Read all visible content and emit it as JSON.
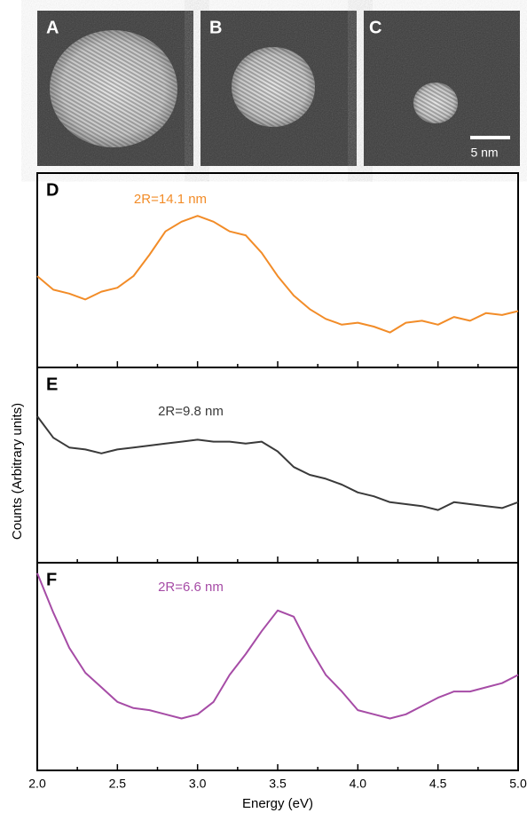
{
  "images": [
    {
      "label": "A"
    },
    {
      "label": "B"
    },
    {
      "label": "C",
      "scale_bar": "5 nm"
    }
  ],
  "chart_data": [
    {
      "type": "line",
      "panel": "D",
      "annotation": "2R=14.1 nm",
      "color": "#f28c28",
      "xlim": [
        2.0,
        5.0
      ],
      "ylim": [
        0,
        1
      ],
      "x": [
        2.0,
        2.1,
        2.2,
        2.3,
        2.4,
        2.5,
        2.6,
        2.7,
        2.8,
        2.9,
        3.0,
        3.1,
        3.2,
        3.3,
        3.4,
        3.5,
        3.6,
        3.7,
        3.8,
        3.9,
        4.0,
        4.1,
        4.2,
        4.3,
        4.4,
        4.5,
        4.6,
        4.7,
        4.8,
        4.9,
        5.0
      ],
      "values": [
        0.47,
        0.4,
        0.38,
        0.35,
        0.39,
        0.41,
        0.47,
        0.58,
        0.7,
        0.75,
        0.78,
        0.75,
        0.7,
        0.68,
        0.59,
        0.47,
        0.37,
        0.3,
        0.25,
        0.22,
        0.23,
        0.21,
        0.18,
        0.23,
        0.24,
        0.22,
        0.26,
        0.24,
        0.28,
        0.27,
        0.29
      ]
    },
    {
      "type": "line",
      "panel": "E",
      "annotation": "2R=9.8 nm",
      "color": "#3a3a3a",
      "ylabel": "Counts (Arbitrary units)",
      "xlim": [
        2.0,
        5.0
      ],
      "ylim": [
        0,
        1
      ],
      "x": [
        2.0,
        2.1,
        2.2,
        2.3,
        2.4,
        2.5,
        2.6,
        2.7,
        2.8,
        2.9,
        3.0,
        3.1,
        3.2,
        3.3,
        3.4,
        3.5,
        3.6,
        3.7,
        3.8,
        3.9,
        4.0,
        4.1,
        4.2,
        4.3,
        4.4,
        4.5,
        4.6,
        4.7,
        4.8,
        4.9,
        5.0
      ],
      "values": [
        0.75,
        0.64,
        0.59,
        0.58,
        0.56,
        0.58,
        0.59,
        0.6,
        0.61,
        0.62,
        0.63,
        0.62,
        0.62,
        0.61,
        0.62,
        0.57,
        0.49,
        0.45,
        0.43,
        0.4,
        0.36,
        0.34,
        0.31,
        0.3,
        0.29,
        0.27,
        0.31,
        0.3,
        0.29,
        0.28,
        0.31
      ]
    },
    {
      "type": "line",
      "panel": "F",
      "annotation": "2R=6.6 nm",
      "color": "#a64ca6",
      "xlabel": "Energy (eV)",
      "xlim": [
        2.0,
        5.0
      ],
      "ylim": [
        0,
        1
      ],
      "xticks": [
        {
          "value": 2,
          "label": "2.0"
        },
        2.5,
        {
          "value": 3,
          "label": "3.0"
        },
        3.5,
        {
          "value": 4,
          "label": "4.0"
        },
        4.5,
        {
          "value": 5,
          "label": "5.0"
        }
      ],
      "xminor_ticks": [
        2.25,
        2.75,
        3.25,
        3.75,
        4.25,
        4.75
      ],
      "x": [
        2.0,
        2.1,
        2.2,
        2.3,
        2.4,
        2.5,
        2.6,
        2.7,
        2.8,
        2.9,
        3.0,
        3.1,
        3.2,
        3.3,
        3.4,
        3.5,
        3.6,
        3.7,
        3.8,
        3.9,
        4.0,
        4.1,
        4.2,
        4.3,
        4.4,
        4.5,
        4.6,
        4.7,
        4.8,
        4.9,
        5.0
      ],
      "values": [
        0.95,
        0.76,
        0.59,
        0.47,
        0.4,
        0.33,
        0.3,
        0.29,
        0.27,
        0.25,
        0.27,
        0.33,
        0.46,
        0.56,
        0.67,
        0.77,
        0.74,
        0.59,
        0.46,
        0.38,
        0.29,
        0.27,
        0.25,
        0.27,
        0.31,
        0.35,
        0.38,
        0.38,
        0.4,
        0.42,
        0.46
      ]
    }
  ]
}
